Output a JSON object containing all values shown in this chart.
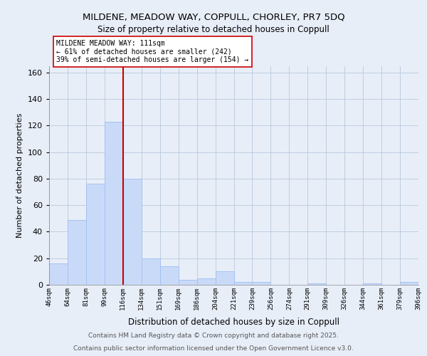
{
  "title1": "MILDENE, MEADOW WAY, COPPULL, CHORLEY, PR7 5DQ",
  "title2": "Size of property relative to detached houses in Coppull",
  "xlabel": "Distribution of detached houses by size in Coppull",
  "ylabel": "Number of detached properties",
  "bin_labels": [
    "46sqm",
    "64sqm",
    "81sqm",
    "99sqm",
    "116sqm",
    "134sqm",
    "151sqm",
    "169sqm",
    "186sqm",
    "204sqm",
    "221sqm",
    "239sqm",
    "256sqm",
    "274sqm",
    "291sqm",
    "309sqm",
    "326sqm",
    "344sqm",
    "361sqm",
    "379sqm",
    "396sqm"
  ],
  "bar_heights": [
    16,
    49,
    76,
    123,
    80,
    20,
    14,
    4,
    5,
    10,
    2,
    2,
    0,
    0,
    1,
    0,
    0,
    1,
    0,
    2
  ],
  "bar_color": "#c9daf8",
  "bar_edge_color": "#a4c2f4",
  "vline_color": "#cc0000",
  "annotation_text": "MILDENE MEADOW WAY: 111sqm\n← 61% of detached houses are smaller (242)\n39% of semi-detached houses are larger (154) →",
  "annotation_box_color": "white",
  "annotation_box_edge": "#cc0000",
  "footer1": "Contains HM Land Registry data © Crown copyright and database right 2025.",
  "footer2": "Contains public sector information licensed under the Open Government Licence v3.0.",
  "ylim": [
    0,
    165
  ],
  "background_color": "#e8eef8",
  "plot_bg_color": "#e8eef8",
  "grid_color": "#b8c8dc"
}
